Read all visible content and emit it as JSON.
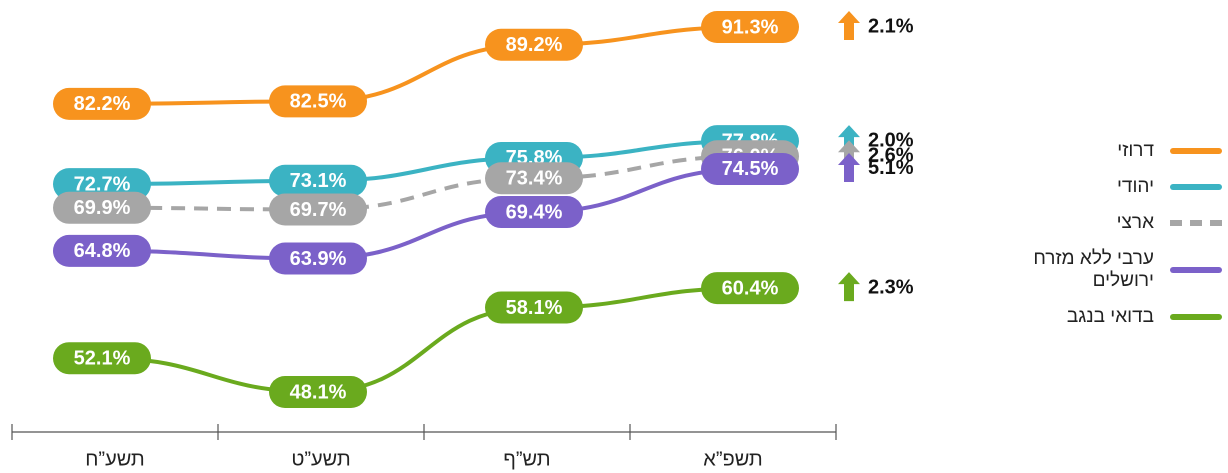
{
  "chart_data": {
    "type": "line",
    "categories": [
      "תשע”ח",
      "תשע”ט",
      "תש”ף",
      "תשפ”א"
    ],
    "series": [
      {
        "name": "דרוזי",
        "color": "#f7931e",
        "values": [
          82.2,
          82.5,
          89.2,
          91.3
        ],
        "value_labels": [
          "82.2%",
          "82.5%",
          "89.2%",
          "91.3%"
        ],
        "change": {
          "value": 2.1,
          "label": "2.1%"
        }
      },
      {
        "name": "יהודי",
        "color": "#3bb3c3",
        "values": [
          72.7,
          73.1,
          75.8,
          77.8
        ],
        "value_labels": [
          "72.7%",
          "73.1%",
          "75.8%",
          "77.8%"
        ],
        "change": {
          "value": 2.0,
          "label": "2.0%"
        }
      },
      {
        "name": "ארצי",
        "color": "#a6a6a6",
        "dashed": true,
        "values": [
          69.9,
          69.7,
          73.4,
          76.0
        ],
        "value_labels": [
          "69.9%",
          "69.7%",
          "73.4%",
          "76.0%"
        ],
        "change": {
          "value": 2.6,
          "label": "2.6%"
        }
      },
      {
        "name": "ערבי ללא מזרח ירושלים",
        "color": "#7b61c9",
        "values": [
          64.8,
          63.9,
          69.4,
          74.5
        ],
        "value_labels": [
          "64.8%",
          "63.9%",
          "69.4%",
          "74.5%"
        ],
        "change": {
          "value": 5.1,
          "label": "5.1%"
        }
      },
      {
        "name": "בדואי בנגב",
        "color": "#6aaa1e",
        "values": [
          52.1,
          48.1,
          58.1,
          60.4
        ],
        "value_labels": [
          "52.1%",
          "48.1%",
          "58.1%",
          "60.4%"
        ],
        "change": {
          "value": 2.3,
          "label": "2.3%"
        }
      }
    ],
    "legend": "right"
  }
}
